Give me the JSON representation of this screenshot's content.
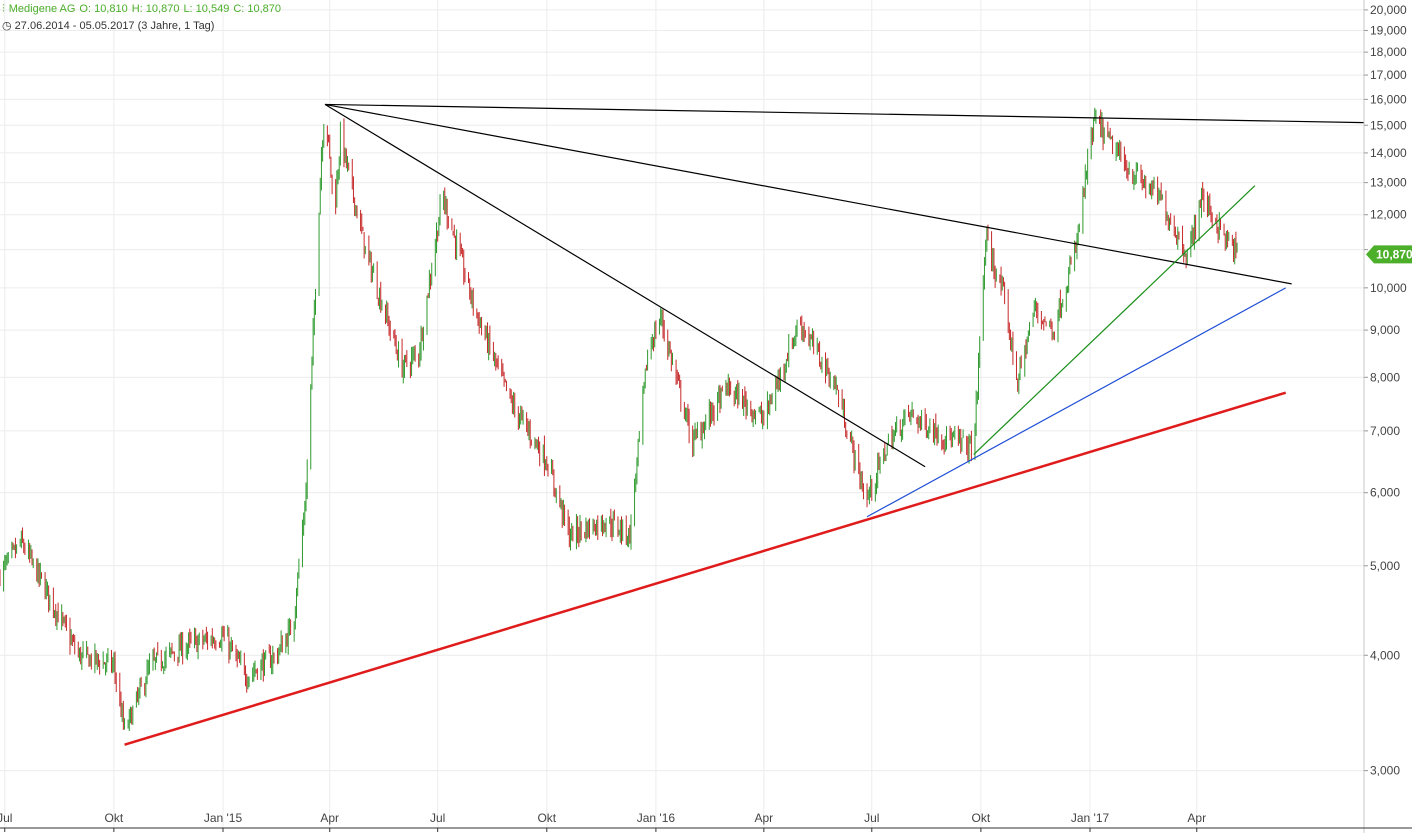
{
  "header": {
    "symbol": "Medigene AG",
    "open": "O: 10,810",
    "high": "H: 10,870",
    "low": "L: 10,549",
    "close": "C: 10,870",
    "period": "27.06.2014 - 05.05.2017",
    "range_note": "(3 Jahre, 1 Tag)",
    "icon": "candlestick-icon",
    "clock_icon": "clock-icon"
  },
  "colors": {
    "up": "#2e9a2e",
    "down": "#c62828",
    "accent": "#4caf2a",
    "trend_black": "#000000",
    "trend_red": "#e01b1b",
    "trend_blue": "#1f4fd6",
    "trend_green": "#1a8f1a"
  },
  "chart_data": {
    "type": "candlestick",
    "title": "Medigene AG",
    "y_scale": "log",
    "ylim": [
      2.6,
      20.5
    ],
    "y_ticks": [
      3,
      4,
      5,
      6,
      7,
      8,
      9,
      10,
      11,
      12,
      13,
      14,
      15,
      16,
      17,
      18,
      19,
      20
    ],
    "y_tick_labels": [
      "3,000",
      "4,000",
      "5,000",
      "6,000",
      "7,000",
      "8,000",
      "9,000",
      "10,000",
      "",
      "12,000",
      "13,000",
      "14,000",
      "15,000",
      "16,000",
      "17,000",
      "18,000",
      "19,000",
      "20,000"
    ],
    "x_labels": [
      "Jul",
      "Okt",
      "Jan '15",
      "Apr",
      "Jul",
      "Okt",
      "Jan '16",
      "Apr",
      "Jul",
      "Okt",
      "Jan '17",
      "Apr"
    ],
    "x_label_dates": [
      "2014-07-01",
      "2014-10-01",
      "2015-01-01",
      "2015-04-01",
      "2015-07-01",
      "2015-10-01",
      "2016-01-01",
      "2016-04-01",
      "2016-07-01",
      "2016-10-01",
      "2017-01-01",
      "2017-04-01"
    ],
    "xlim": [
      "2014-06-27",
      "2017-08-20"
    ],
    "last_price": 10.87,
    "last_price_label": "10,870",
    "grid": true,
    "path_points": [
      [
        "2014-06-27",
        4.9
      ],
      [
        "2014-07-15",
        5.3
      ],
      [
        "2014-08-05",
        4.7
      ],
      [
        "2014-09-01",
        4.0
      ],
      [
        "2014-10-01",
        3.9
      ],
      [
        "2014-10-10",
        3.3
      ],
      [
        "2014-11-01",
        3.9
      ],
      [
        "2014-12-01",
        4.1
      ],
      [
        "2015-01-01",
        4.2
      ],
      [
        "2015-01-20",
        3.8
      ],
      [
        "2015-02-15",
        4.0
      ],
      [
        "2015-03-01",
        4.3
      ],
      [
        "2015-03-12",
        6.0
      ],
      [
        "2015-03-25",
        14.0
      ],
      [
        "2015-03-28",
        15.8
      ],
      [
        "2015-04-05",
        12.0
      ],
      [
        "2015-04-10",
        14.6
      ],
      [
        "2015-05-01",
        11.0
      ],
      [
        "2015-06-01",
        8.2
      ],
      [
        "2015-06-15",
        8.5
      ],
      [
        "2015-07-05",
        12.6
      ],
      [
        "2015-08-01",
        9.5
      ],
      [
        "2015-09-01",
        7.5
      ],
      [
        "2015-10-01",
        6.5
      ],
      [
        "2015-10-20",
        5.4
      ],
      [
        "2015-11-20",
        5.6
      ],
      [
        "2015-12-10",
        5.4
      ],
      [
        "2015-12-25",
        8.5
      ],
      [
        "2016-01-05",
        9.3
      ],
      [
        "2016-02-01",
        6.8
      ],
      [
        "2016-03-01",
        7.8
      ],
      [
        "2016-04-01",
        7.2
      ],
      [
        "2016-05-01",
        9.2
      ],
      [
        "2016-06-01",
        7.8
      ],
      [
        "2016-06-20",
        6.3
      ],
      [
        "2016-06-27",
        5.9
      ],
      [
        "2016-07-15",
        6.8
      ],
      [
        "2016-08-01",
        7.3
      ],
      [
        "2016-09-01",
        6.9
      ],
      [
        "2016-09-25",
        6.7
      ],
      [
        "2016-10-05",
        11.3
      ],
      [
        "2016-10-20",
        9.8
      ],
      [
        "2016-11-01",
        7.9
      ],
      [
        "2016-11-15",
        9.5
      ],
      [
        "2016-12-01",
        9.0
      ],
      [
        "2016-12-20",
        11.0
      ],
      [
        "2017-01-01",
        14.2
      ],
      [
        "2017-01-05",
        15.2
      ],
      [
        "2017-02-01",
        13.5
      ],
      [
        "2017-03-01",
        12.5
      ],
      [
        "2017-03-25",
        10.8
      ],
      [
        "2017-04-05",
        12.6
      ],
      [
        "2017-04-25",
        11.3
      ],
      [
        "2017-05-05",
        10.87
      ]
    ],
    "trendlines": [
      {
        "color": "black",
        "from": [
          "2015-03-28",
          15.8
        ],
        "to": [
          "2017-08-20",
          15.1
        ]
      },
      {
        "color": "black",
        "from": [
          "2015-03-28",
          15.8
        ],
        "to": [
          "2017-06-20",
          10.1
        ]
      },
      {
        "color": "black",
        "from": [
          "2015-03-28",
          15.8
        ],
        "to": [
          "2016-08-15",
          6.4
        ]
      },
      {
        "color": "red",
        "from": [
          "2014-10-10",
          3.2
        ],
        "to": [
          "2017-06-15",
          7.7
        ]
      },
      {
        "color": "blue",
        "from": [
          "2016-06-27",
          5.65
        ],
        "to": [
          "2017-06-15",
          10.0
        ]
      },
      {
        "color": "green",
        "from": [
          "2016-09-25",
          6.6
        ],
        "to": [
          "2017-05-20",
          12.9
        ]
      }
    ]
  }
}
